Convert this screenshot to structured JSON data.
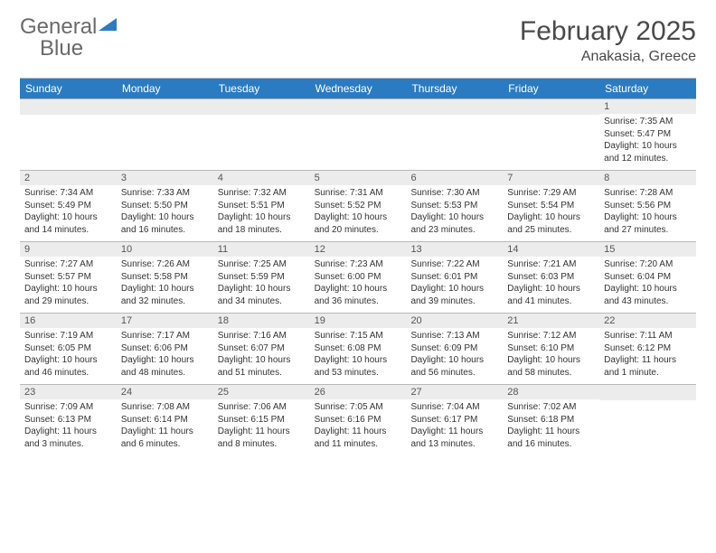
{
  "logo": {
    "text1": "General",
    "text2": "Blue",
    "icon_color": "#2b7bc2",
    "text1_color": "#6a6a6a"
  },
  "header": {
    "month": "February 2025",
    "location": "Anakasia, Greece"
  },
  "colors": {
    "header_bg": "#2b7bc2",
    "header_text": "#ffffff",
    "daynum_bg": "#ececec",
    "border": "#b8b8b8",
    "body_text": "#333333"
  },
  "day_names": [
    "Sunday",
    "Monday",
    "Tuesday",
    "Wednesday",
    "Thursday",
    "Friday",
    "Saturday"
  ],
  "weeks": [
    [
      {
        "blank": true
      },
      {
        "blank": true
      },
      {
        "blank": true
      },
      {
        "blank": true
      },
      {
        "blank": true
      },
      {
        "blank": true
      },
      {
        "n": "1",
        "sunrise": "Sunrise: 7:35 AM",
        "sunset": "Sunset: 5:47 PM",
        "daylight": "Daylight: 10 hours and 12 minutes."
      }
    ],
    [
      {
        "n": "2",
        "sunrise": "Sunrise: 7:34 AM",
        "sunset": "Sunset: 5:49 PM",
        "daylight": "Daylight: 10 hours and 14 minutes."
      },
      {
        "n": "3",
        "sunrise": "Sunrise: 7:33 AM",
        "sunset": "Sunset: 5:50 PM",
        "daylight": "Daylight: 10 hours and 16 minutes."
      },
      {
        "n": "4",
        "sunrise": "Sunrise: 7:32 AM",
        "sunset": "Sunset: 5:51 PM",
        "daylight": "Daylight: 10 hours and 18 minutes."
      },
      {
        "n": "5",
        "sunrise": "Sunrise: 7:31 AM",
        "sunset": "Sunset: 5:52 PM",
        "daylight": "Daylight: 10 hours and 20 minutes."
      },
      {
        "n": "6",
        "sunrise": "Sunrise: 7:30 AM",
        "sunset": "Sunset: 5:53 PM",
        "daylight": "Daylight: 10 hours and 23 minutes."
      },
      {
        "n": "7",
        "sunrise": "Sunrise: 7:29 AM",
        "sunset": "Sunset: 5:54 PM",
        "daylight": "Daylight: 10 hours and 25 minutes."
      },
      {
        "n": "8",
        "sunrise": "Sunrise: 7:28 AM",
        "sunset": "Sunset: 5:56 PM",
        "daylight": "Daylight: 10 hours and 27 minutes."
      }
    ],
    [
      {
        "n": "9",
        "sunrise": "Sunrise: 7:27 AM",
        "sunset": "Sunset: 5:57 PM",
        "daylight": "Daylight: 10 hours and 29 minutes."
      },
      {
        "n": "10",
        "sunrise": "Sunrise: 7:26 AM",
        "sunset": "Sunset: 5:58 PM",
        "daylight": "Daylight: 10 hours and 32 minutes."
      },
      {
        "n": "11",
        "sunrise": "Sunrise: 7:25 AM",
        "sunset": "Sunset: 5:59 PM",
        "daylight": "Daylight: 10 hours and 34 minutes."
      },
      {
        "n": "12",
        "sunrise": "Sunrise: 7:23 AM",
        "sunset": "Sunset: 6:00 PM",
        "daylight": "Daylight: 10 hours and 36 minutes."
      },
      {
        "n": "13",
        "sunrise": "Sunrise: 7:22 AM",
        "sunset": "Sunset: 6:01 PM",
        "daylight": "Daylight: 10 hours and 39 minutes."
      },
      {
        "n": "14",
        "sunrise": "Sunrise: 7:21 AM",
        "sunset": "Sunset: 6:03 PM",
        "daylight": "Daylight: 10 hours and 41 minutes."
      },
      {
        "n": "15",
        "sunrise": "Sunrise: 7:20 AM",
        "sunset": "Sunset: 6:04 PM",
        "daylight": "Daylight: 10 hours and 43 minutes."
      }
    ],
    [
      {
        "n": "16",
        "sunrise": "Sunrise: 7:19 AM",
        "sunset": "Sunset: 6:05 PM",
        "daylight": "Daylight: 10 hours and 46 minutes."
      },
      {
        "n": "17",
        "sunrise": "Sunrise: 7:17 AM",
        "sunset": "Sunset: 6:06 PM",
        "daylight": "Daylight: 10 hours and 48 minutes."
      },
      {
        "n": "18",
        "sunrise": "Sunrise: 7:16 AM",
        "sunset": "Sunset: 6:07 PM",
        "daylight": "Daylight: 10 hours and 51 minutes."
      },
      {
        "n": "19",
        "sunrise": "Sunrise: 7:15 AM",
        "sunset": "Sunset: 6:08 PM",
        "daylight": "Daylight: 10 hours and 53 minutes."
      },
      {
        "n": "20",
        "sunrise": "Sunrise: 7:13 AM",
        "sunset": "Sunset: 6:09 PM",
        "daylight": "Daylight: 10 hours and 56 minutes."
      },
      {
        "n": "21",
        "sunrise": "Sunrise: 7:12 AM",
        "sunset": "Sunset: 6:10 PM",
        "daylight": "Daylight: 10 hours and 58 minutes."
      },
      {
        "n": "22",
        "sunrise": "Sunrise: 7:11 AM",
        "sunset": "Sunset: 6:12 PM",
        "daylight": "Daylight: 11 hours and 1 minute."
      }
    ],
    [
      {
        "n": "23",
        "sunrise": "Sunrise: 7:09 AM",
        "sunset": "Sunset: 6:13 PM",
        "daylight": "Daylight: 11 hours and 3 minutes."
      },
      {
        "n": "24",
        "sunrise": "Sunrise: 7:08 AM",
        "sunset": "Sunset: 6:14 PM",
        "daylight": "Daylight: 11 hours and 6 minutes."
      },
      {
        "n": "25",
        "sunrise": "Sunrise: 7:06 AM",
        "sunset": "Sunset: 6:15 PM",
        "daylight": "Daylight: 11 hours and 8 minutes."
      },
      {
        "n": "26",
        "sunrise": "Sunrise: 7:05 AM",
        "sunset": "Sunset: 6:16 PM",
        "daylight": "Daylight: 11 hours and 11 minutes."
      },
      {
        "n": "27",
        "sunrise": "Sunrise: 7:04 AM",
        "sunset": "Sunset: 6:17 PM",
        "daylight": "Daylight: 11 hours and 13 minutes."
      },
      {
        "n": "28",
        "sunrise": "Sunrise: 7:02 AM",
        "sunset": "Sunset: 6:18 PM",
        "daylight": "Daylight: 11 hours and 16 minutes."
      },
      {
        "blank": true
      }
    ]
  ]
}
